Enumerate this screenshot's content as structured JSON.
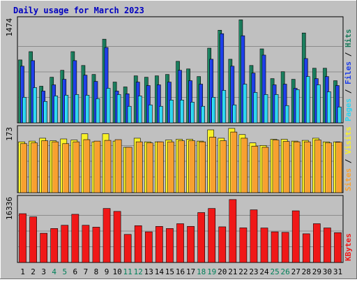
{
  "chart_data": {
    "type": "bar",
    "title": "Daily usage for March 2023",
    "categories": [
      "1",
      "2",
      "3",
      "4",
      "5",
      "6",
      "7",
      "8",
      "9",
      "10",
      "11",
      "12",
      "13",
      "14",
      "15",
      "16",
      "17",
      "18",
      "19",
      "20",
      "21",
      "22",
      "23",
      "24",
      "25",
      "26",
      "27",
      "28",
      "29",
      "30",
      "31"
    ],
    "weekend_days": [
      4,
      5,
      11,
      12,
      18,
      19,
      25,
      26
    ],
    "colors": {
      "hits": "#1a7a5a",
      "files": "#1e3ee8",
      "pages": "#2ed4f0",
      "visits": "#f8f028",
      "sites": "#f8a030",
      "kbytes": "#f01818",
      "weekday_label": "#000000",
      "weekend_label": "#00805a",
      "title": "#0000c0",
      "panel_bg": "#c0c0c0"
    },
    "panels": [
      {
        "id": "usage",
        "max_label": "1474",
        "ylim": [
          0,
          1474
        ],
        "legend": [
          {
            "text": "Pages",
            "color": "#2ed4f0"
          },
          {
            "text": " / ",
            "color": "#000000"
          },
          {
            "text": "Files",
            "color": "#1e3ee8"
          },
          {
            "text": " / ",
            "color": "#000000"
          },
          {
            "text": "Hits",
            "color": "#1a7a5a"
          }
        ],
        "series": [
          {
            "name": "Hits",
            "color": "#1a7a5a",
            "values": [
              910,
              1030,
              530,
              660,
              760,
              1030,
              830,
              700,
              1210,
              590,
              520,
              680,
              660,
              680,
              700,
              890,
              780,
              670,
              1080,
              1340,
              920,
              1490,
              830,
              1070,
              640,
              740,
              630,
              1300,
              790,
              790,
              610
            ]
          },
          {
            "name": "Files",
            "color": "#1e3ee8",
            "values": [
              820,
              900,
              460,
              550,
              630,
              900,
              690,
              600,
              1090,
              460,
              420,
              590,
              540,
              550,
              590,
              760,
              610,
              560,
              920,
              1290,
              820,
              1260,
              720,
              980,
              550,
              560,
              500,
              930,
              640,
              670,
              540
            ]
          },
          {
            "name": "Pages",
            "color": "#2ed4f0",
            "values": [
              370,
              510,
              310,
              390,
              400,
              410,
              400,
              350,
              500,
              410,
              240,
              390,
              260,
              240,
              330,
              330,
              300,
              240,
              370,
              470,
              260,
              560,
              440,
              410,
              410,
              250,
              480,
              670,
              550,
              450,
              230
            ]
          }
        ]
      },
      {
        "id": "visits",
        "max_label": "173",
        "ylim": [
          0,
          173
        ],
        "legend": [
          {
            "text": "Sites",
            "color": "#f8a030"
          },
          {
            "text": " / ",
            "color": "#000000"
          },
          {
            "text": "Visits",
            "color": "#f8f028"
          }
        ],
        "series": [
          {
            "name": "Visits",
            "color": "#f8f028",
            "values": [
              140,
              142,
              150,
              143,
              148,
              145,
              162,
              140,
              162,
              142,
              125,
              150,
              140,
              140,
              145,
              147,
              147,
              142,
              173,
              150,
              177,
              160,
              137,
              130,
              147,
              147,
              142,
              144,
              150,
              140,
              140
            ]
          },
          {
            "name": "Sites",
            "color": "#f8a030",
            "values": [
              135,
              137,
              143,
              140,
              135,
              140,
              146,
              142,
              144,
              146,
              125,
              140,
              137,
              140,
              140,
              143,
              143,
              140,
              153,
              143,
              167,
              150,
              128,
              125,
              145,
              141,
              140,
              140,
              145,
              137,
              139
            ]
          }
        ]
      },
      {
        "id": "kbytes",
        "max_label": "16336",
        "ylim": [
          0,
          16336
        ],
        "legend": [
          {
            "text": "KBytes",
            "color": "#f01818"
          }
        ],
        "series": [
          {
            "name": "KBytes",
            "color": "#f01818",
            "values": [
              12690,
              11860,
              7600,
              8830,
              9670,
              12530,
              9670,
              9180,
              14040,
              13280,
              7300,
              9570,
              7970,
              9380,
              8830,
              10080,
              9390,
              12980,
              14040,
              9270,
              16360,
              9000,
              13690,
              8970,
              7970,
              7840,
              13430,
              7460,
              10080,
              8980,
              7750
            ]
          }
        ]
      }
    ]
  }
}
